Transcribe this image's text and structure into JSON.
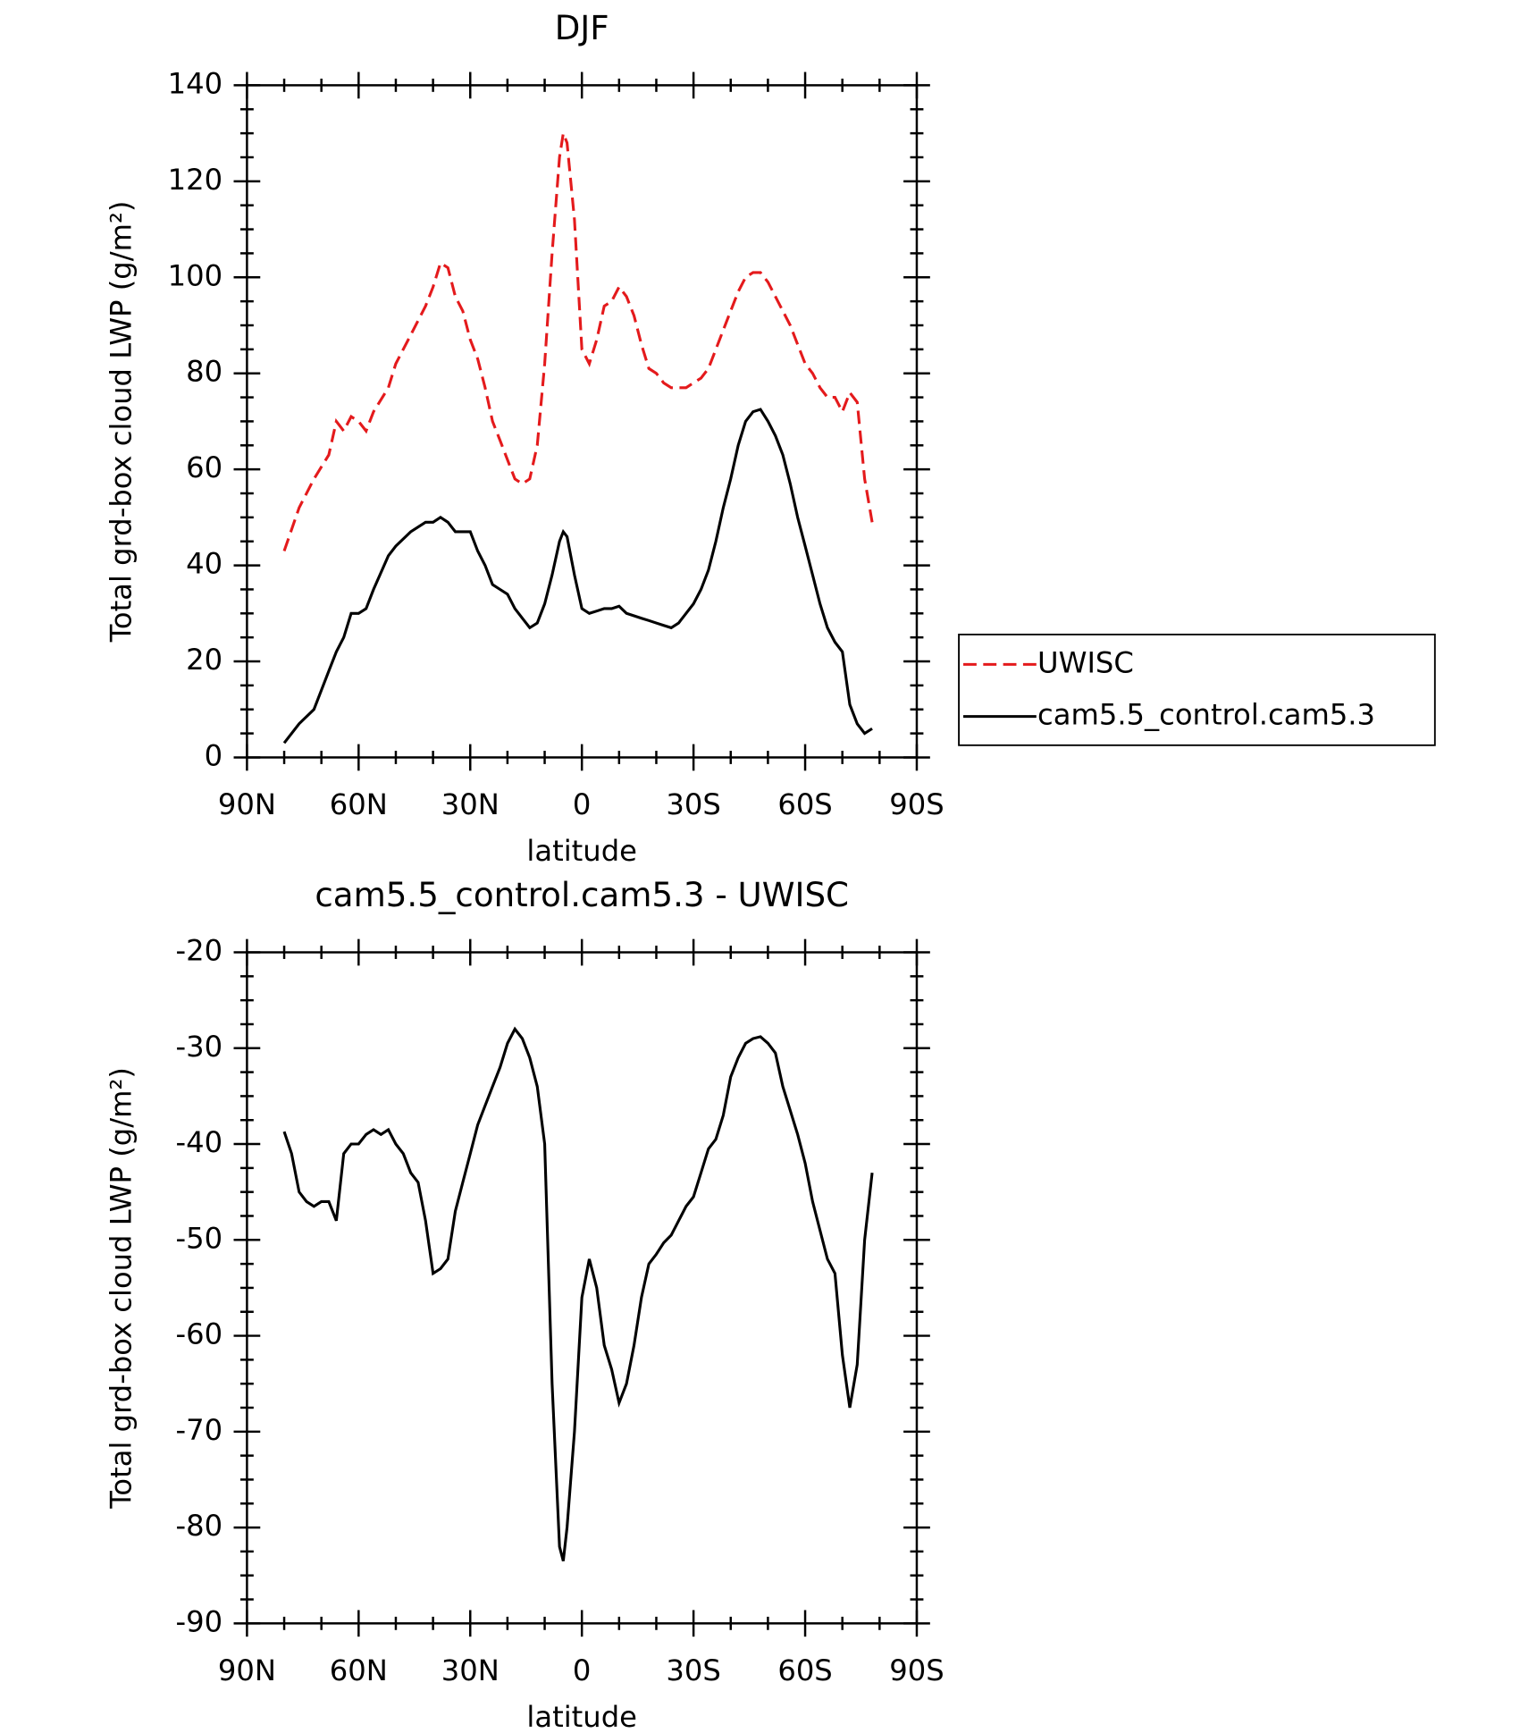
{
  "chart_data": [
    {
      "type": "line",
      "title": "DJF",
      "xlabel": "latitude",
      "ylabel": "Total grd-box cloud LWP (g/m²)",
      "x": [
        80,
        76,
        72,
        68,
        66,
        64,
        62,
        60,
        58,
        56,
        52,
        50,
        46,
        42,
        40,
        38,
        36,
        34,
        32,
        30,
        28,
        26,
        24,
        22,
        20,
        18,
        16,
        14,
        12,
        10,
        8,
        6,
        5,
        4,
        2,
        0,
        -2,
        -4,
        -6,
        -8,
        -10,
        -12,
        -14,
        -16,
        -18,
        -20,
        -22,
        -24,
        -26,
        -28,
        -30,
        -32,
        -34,
        -36,
        -38,
        -40,
        -42,
        -44,
        -46,
        -48,
        -50,
        -52,
        -54,
        -56,
        -58,
        -60,
        -62,
        -64,
        -66,
        -68,
        -70,
        -72,
        -74,
        -76,
        -78
      ],
      "series": [
        {
          "name": "UWISC",
          "color": "#e41a1c",
          "linestyle": "dashed",
          "values": [
            43,
            52,
            58,
            63,
            70,
            68,
            71,
            70,
            68,
            72,
            77,
            82,
            88,
            94,
            98,
            103,
            102,
            96,
            93,
            87,
            83,
            77,
            70,
            66,
            62,
            58,
            57,
            58,
            65,
            82,
            105,
            125,
            130,
            128,
            112,
            85,
            82,
            87,
            94,
            95,
            98,
            96,
            92,
            86,
            81,
            80,
            78,
            77,
            77,
            77,
            78,
            79,
            81,
            85,
            89,
            93,
            97,
            100,
            101,
            101,
            99,
            96,
            93,
            90,
            86,
            82,
            80,
            77,
            75,
            75,
            72,
            76,
            74,
            58,
            49
          ]
        },
        {
          "name": "cam5.5_control.cam5.3",
          "color": "#000000",
          "linestyle": "solid",
          "values": [
            3,
            7,
            10,
            18,
            22,
            25,
            30,
            30,
            31,
            35,
            42,
            44,
            47,
            49,
            49,
            50,
            49,
            47,
            47,
            47,
            43,
            40,
            36,
            35,
            34,
            31,
            29,
            27,
            28,
            32,
            38,
            45,
            47,
            46,
            38,
            31,
            30,
            30.5,
            31,
            31,
            31.5,
            30,
            29.5,
            29,
            28.5,
            28,
            27.5,
            27,
            28,
            30,
            32,
            35,
            39,
            45,
            52,
            58,
            65,
            70,
            72,
            72.5,
            70,
            67,
            63,
            57,
            50,
            44,
            38,
            32,
            27,
            24,
            22,
            11,
            7,
            5,
            6
          ]
        }
      ],
      "xlim": [
        90,
        -90
      ],
      "xticks": [
        {
          "value": 90,
          "label": "90N"
        },
        {
          "value": 60,
          "label": "60N"
        },
        {
          "value": 30,
          "label": "30N"
        },
        0,
        {
          "value": -30,
          "label": "30S"
        },
        {
          "value": -60,
          "label": "60S"
        },
        {
          "value": -90,
          "label": "90S"
        }
      ],
      "ylim": [
        0,
        140
      ],
      "yticks": [
        0,
        20,
        40,
        60,
        80,
        100,
        120,
        140
      ],
      "legend": "right"
    },
    {
      "type": "line",
      "title": "cam5.5_control.cam5.3 - UWISC",
      "xlabel": "latitude",
      "ylabel": "Total grd-box cloud LWP (g/m²)",
      "x": [
        80,
        78,
        76,
        74,
        72,
        70,
        68,
        66,
        64,
        62,
        60,
        58,
        56,
        54,
        52,
        50,
        48,
        46,
        44,
        42,
        40,
        38,
        36,
        34,
        32,
        30,
        28,
        26,
        24,
        22,
        20,
        18,
        16,
        14,
        12,
        10,
        8,
        6,
        5,
        4,
        2,
        0,
        -2,
        -4,
        -6,
        -8,
        -10,
        -12,
        -14,
        -16,
        -18,
        -20,
        -22,
        -24,
        -26,
        -28,
        -30,
        -32,
        -34,
        -36,
        -38,
        -40,
        -42,
        -44,
        -46,
        -48,
        -50,
        -52,
        -54,
        -56,
        -58,
        -60,
        -62,
        -64,
        -66,
        -68,
        -70,
        -72,
        -74,
        -76,
        -78
      ],
      "series": [
        {
          "color": "#000000",
          "linestyle": "solid",
          "values": [
            -38.7,
            -41,
            -45,
            -46,
            -46.5,
            -46,
            -46,
            -48,
            -41,
            -40,
            -40,
            -39,
            -38.5,
            -39,
            -38.5,
            -40,
            -41,
            -43,
            -44,
            -48,
            -53.5,
            -53,
            -52,
            -47,
            -44,
            -41,
            -38,
            -36,
            -34,
            -32,
            -29.5,
            -28,
            -29,
            -31,
            -34,
            -40,
            -65,
            -82,
            -83.5,
            -80,
            -70,
            -56,
            -52,
            -55,
            -61,
            -63.5,
            -67,
            -65,
            -61,
            -56,
            -52.5,
            -51.5,
            -50.3,
            -49.5,
            -48,
            -46.5,
            -45.5,
            -43,
            -40.5,
            -39.5,
            -37,
            -33,
            -31,
            -29.5,
            -29,
            -28.8,
            -29.5,
            -30.5,
            -34,
            -36.5,
            -39,
            -42,
            -46,
            -49,
            -52,
            -53.5,
            -62,
            -67.5,
            -63,
            -50,
            -43
          ]
        }
      ],
      "xlim": [
        90,
        -90
      ],
      "xticks": [
        {
          "value": 90,
          "label": "90N"
        },
        {
          "value": 60,
          "label": "60N"
        },
        {
          "value": 30,
          "label": "30N"
        },
        0,
        {
          "value": -30,
          "label": "30S"
        },
        {
          "value": -60,
          "label": "60S"
        },
        {
          "value": -90,
          "label": "90S"
        }
      ],
      "ylim": [
        -90,
        -20
      ],
      "yticks": [
        -90,
        -80,
        -70,
        -60,
        -50,
        -40,
        -30,
        -20
      ]
    }
  ]
}
